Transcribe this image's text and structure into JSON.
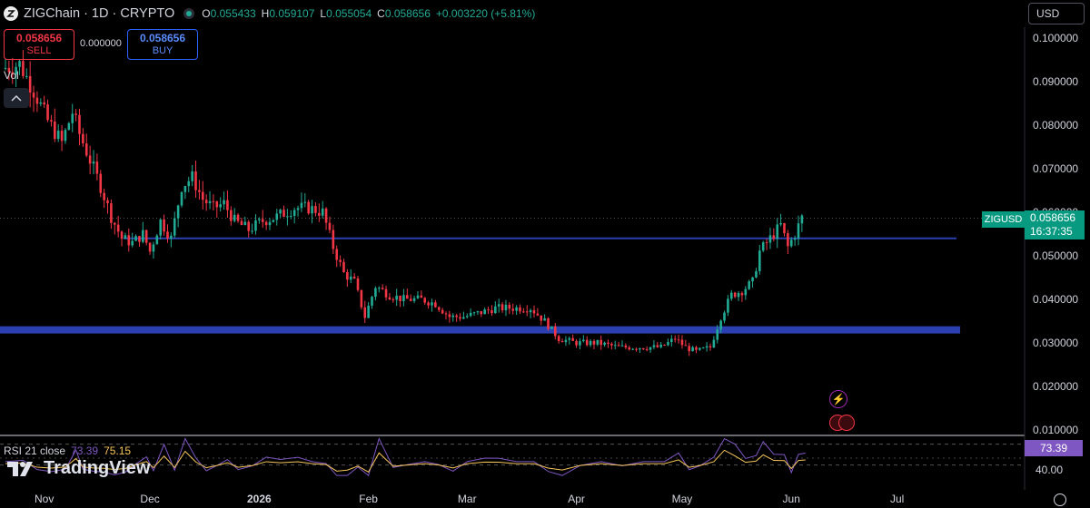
{
  "header": {
    "symbol_title": "ZIGChain · 1D · CRYPTO",
    "ohlc": [
      {
        "label": "O",
        "value": "0.055433"
      },
      {
        "label": "H",
        "value": "0.059107"
      },
      {
        "label": "L",
        "value": "0.055054"
      },
      {
        "label": "C",
        "value": "0.058656"
      }
    ],
    "change": "+0.003220 (+5.81%)"
  },
  "trade": {
    "sell_price": "0.058656",
    "sell_label": "SELL",
    "spread": "0.000000",
    "buy_price": "0.058656",
    "buy_label": "BUY"
  },
  "volume_label": "Vol",
  "currency": "USD",
  "price_scale": [
    "0.100000",
    "0.090000",
    "0.080000",
    "0.070000",
    "0.060000",
    "0.050000",
    "0.040000",
    "0.030000",
    "0.020000",
    "0.010000"
  ],
  "last_price": {
    "symbol": "ZIGUSD",
    "price": "0.058656",
    "countdown": "16:37:35"
  },
  "time_scale": [
    {
      "label": "Nov",
      "bold": false
    },
    {
      "label": "Dec",
      "bold": false
    },
    {
      "label": "2026",
      "bold": true
    },
    {
      "label": "Feb",
      "bold": false
    },
    {
      "label": "Mar",
      "bold": false
    },
    {
      "label": "Apr",
      "bold": false
    },
    {
      "label": "May",
      "bold": false
    },
    {
      "label": "Jun",
      "bold": false
    },
    {
      "label": "Jul",
      "bold": false
    }
  ],
  "rsi": {
    "title": "RSI 21 close",
    "value": "73.39",
    "ma_value": "75.15",
    "level_label": "40.00"
  },
  "brand": "TradingView",
  "colors": {
    "up": "#22ab94",
    "down": "#f23645",
    "level": "#2a3fb0",
    "rsi": "#7e57c2",
    "rsi_ma": "#f7c65a"
  },
  "chart_data": {
    "type": "candlestick",
    "title": "ZIGChain · 1D · CRYPTO",
    "y_range": [
      0.01,
      0.1
    ],
    "x_range": [
      "2025-10-21",
      "2026-07-20"
    ],
    "horizontal_levels": [
      0.054,
      0.033
    ],
    "series_close_approx": [
      {
        "date": "2025-10-21",
        "close": 0.093
      },
      {
        "date": "2025-10-26",
        "close": 0.094
      },
      {
        "date": "2025-10-30",
        "close": 0.088
      },
      {
        "date": "2025-11-03",
        "close": 0.081
      },
      {
        "date": "2025-11-07",
        "close": 0.076
      },
      {
        "date": "2025-11-10",
        "close": 0.083
      },
      {
        "date": "2025-11-12",
        "close": 0.078
      },
      {
        "date": "2025-11-15",
        "close": 0.072
      },
      {
        "date": "2025-11-18",
        "close": 0.066
      },
      {
        "date": "2025-11-21",
        "close": 0.059
      },
      {
        "date": "2025-11-24",
        "close": 0.054
      },
      {
        "date": "2025-11-27",
        "close": 0.053
      },
      {
        "date": "2025-11-30",
        "close": 0.055
      },
      {
        "date": "2025-12-02",
        "close": 0.051
      },
      {
        "date": "2025-12-05",
        "close": 0.058
      },
      {
        "date": "2025-12-08",
        "close": 0.054
      },
      {
        "date": "2025-12-11",
        "close": 0.066
      },
      {
        "date": "2025-12-14",
        "close": 0.068
      },
      {
        "date": "2025-12-17",
        "close": 0.063
      },
      {
        "date": "2025-12-20",
        "close": 0.061
      },
      {
        "date": "2025-12-23",
        "close": 0.062
      },
      {
        "date": "2025-12-26",
        "close": 0.058
      },
      {
        "date": "2025-12-30",
        "close": 0.056
      },
      {
        "date": "2026-01-03",
        "close": 0.058
      },
      {
        "date": "2026-01-07",
        "close": 0.059
      },
      {
        "date": "2026-01-12",
        "close": 0.061
      },
      {
        "date": "2026-01-16",
        "close": 0.061
      },
      {
        "date": "2026-01-20",
        "close": 0.06
      },
      {
        "date": "2026-01-23",
        "close": 0.052
      },
      {
        "date": "2026-01-26",
        "close": 0.046
      },
      {
        "date": "2026-01-29",
        "close": 0.044
      },
      {
        "date": "2026-02-01",
        "close": 0.036
      },
      {
        "date": "2026-02-04",
        "close": 0.043
      },
      {
        "date": "2026-02-08",
        "close": 0.041
      },
      {
        "date": "2026-02-12",
        "close": 0.04
      },
      {
        "date": "2026-02-17",
        "close": 0.04
      },
      {
        "date": "2026-02-21",
        "close": 0.039
      },
      {
        "date": "2026-02-25",
        "close": 0.036
      },
      {
        "date": "2026-03-01",
        "close": 0.036
      },
      {
        "date": "2026-03-06",
        "close": 0.037
      },
      {
        "date": "2026-03-10",
        "close": 0.038
      },
      {
        "date": "2026-03-15",
        "close": 0.038
      },
      {
        "date": "2026-03-20",
        "close": 0.038
      },
      {
        "date": "2026-03-24",
        "close": 0.035
      },
      {
        "date": "2026-03-28",
        "close": 0.031
      },
      {
        "date": "2026-04-02",
        "close": 0.03
      },
      {
        "date": "2026-04-08",
        "close": 0.03
      },
      {
        "date": "2026-04-14",
        "close": 0.029
      },
      {
        "date": "2026-04-20",
        "close": 0.029
      },
      {
        "date": "2026-04-26",
        "close": 0.029
      },
      {
        "date": "2026-04-30",
        "close": 0.031
      },
      {
        "date": "2026-05-03",
        "close": 0.029
      },
      {
        "date": "2026-05-06",
        "close": 0.028
      },
      {
        "date": "2026-05-10",
        "close": 0.029
      },
      {
        "date": "2026-05-13",
        "close": 0.036
      },
      {
        "date": "2026-05-16",
        "close": 0.041
      },
      {
        "date": "2026-05-19",
        "close": 0.042
      },
      {
        "date": "2026-05-22",
        "close": 0.044
      },
      {
        "date": "2026-05-24",
        "close": 0.051
      },
      {
        "date": "2026-05-27",
        "close": 0.054
      },
      {
        "date": "2026-05-30",
        "close": 0.057
      },
      {
        "date": "2026-06-01",
        "close": 0.052
      },
      {
        "date": "2026-06-03",
        "close": 0.055
      },
      {
        "date": "2026-06-05",
        "close": 0.0587
      }
    ],
    "rsi_series": {
      "name": "RSI 21 close",
      "last": 73.39,
      "ma_last": 75.15,
      "level": 40
    }
  }
}
